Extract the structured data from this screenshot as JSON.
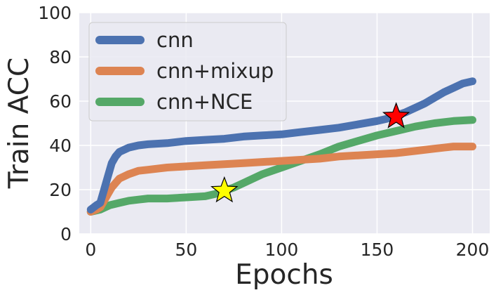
{
  "chart_data": {
    "type": "line",
    "title": "",
    "xlabel": "Epochs",
    "ylabel": "Train ACC",
    "xlim": [
      -6,
      209
    ],
    "ylim": [
      0,
      100
    ],
    "xticks": [
      0,
      50,
      100,
      150,
      200
    ],
    "yticks": [
      0,
      20,
      40,
      60,
      80,
      100
    ],
    "grid": true,
    "legend_position": "top-left",
    "background": "#EAEAF2",
    "series": [
      {
        "name": "cnn",
        "color": "#4C72B0",
        "x": [
          0,
          3,
          5,
          7,
          9,
          11,
          13,
          15,
          20,
          25,
          30,
          40,
          50,
          60,
          70,
          80,
          90,
          100,
          110,
          120,
          130,
          140,
          150,
          155,
          160,
          165,
          170,
          175,
          180,
          185,
          190,
          195,
          200
        ],
        "y": [
          11,
          13,
          14,
          20,
          26,
          32,
          35,
          37,
          39,
          40,
          40.5,
          41,
          42,
          42.5,
          43,
          44,
          44.5,
          45,
          46,
          47,
          48,
          49.5,
          51,
          52,
          53.5,
          55,
          57,
          59,
          61.5,
          64,
          66,
          68,
          69
        ]
      },
      {
        "name": "cnn+mixup",
        "color": "#DD8452",
        "x": [
          0,
          3,
          5,
          7,
          9,
          11,
          13,
          15,
          20,
          25,
          30,
          40,
          50,
          60,
          70,
          80,
          90,
          100,
          110,
          120,
          130,
          140,
          150,
          160,
          170,
          180,
          190,
          200
        ],
        "y": [
          10,
          11,
          12,
          15,
          18,
          21,
          23,
          25,
          27,
          28.5,
          29,
          30,
          30.5,
          31,
          31.5,
          32,
          32.5,
          33,
          33.5,
          34,
          35,
          35.5,
          36,
          36.5,
          37.5,
          38.5,
          39.5,
          39.5
        ]
      },
      {
        "name": "cnn+NCE",
        "color": "#55A868",
        "x": [
          0,
          5,
          10,
          15,
          20,
          25,
          30,
          40,
          50,
          60,
          65,
          70,
          75,
          80,
          90,
          100,
          110,
          120,
          130,
          140,
          150,
          160,
          170,
          180,
          190,
          200
        ],
        "y": [
          10,
          11,
          13,
          14,
          15,
          15.5,
          16,
          16,
          16.5,
          17,
          18,
          19.5,
          21,
          23,
          27,
          30,
          33,
          36,
          39.5,
          42,
          44.5,
          46.5,
          48.5,
          50,
          51,
          51.5
        ]
      }
    ],
    "markers": [
      {
        "shape": "star",
        "x": 160,
        "y": 53,
        "fill": "#FF0000",
        "stroke": "#000000"
      },
      {
        "shape": "star",
        "x": 70,
        "y": 19.5,
        "fill": "#FFFF00",
        "stroke": "#000000"
      }
    ]
  }
}
